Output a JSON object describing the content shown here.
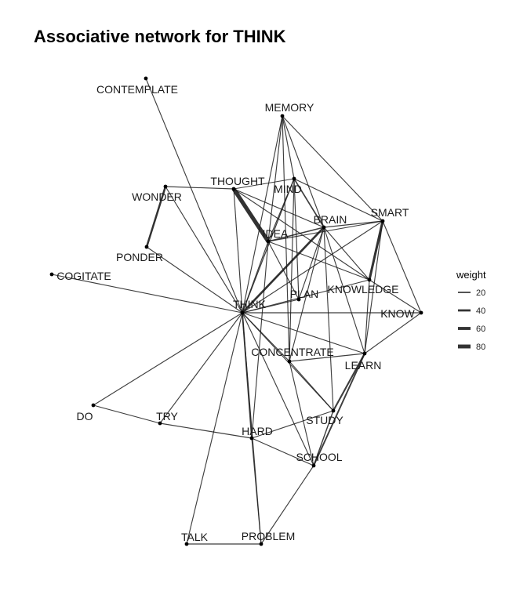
{
  "title": "Associative network for THINK",
  "legend": {
    "title": "weight",
    "items": [
      {
        "label": "20",
        "weight": 20
      },
      {
        "label": "40",
        "weight": 40
      },
      {
        "label": "60",
        "weight": 60
      },
      {
        "label": "80",
        "weight": 80
      }
    ]
  },
  "nodes": [
    {
      "id": "THINK",
      "label": "THINK"
    },
    {
      "id": "CONTEMPLATE",
      "label": "CONTEMPLATE"
    },
    {
      "id": "MEMORY",
      "label": "MEMORY"
    },
    {
      "id": "THOUGHT",
      "label": "THOUGHT"
    },
    {
      "id": "MIND",
      "label": "MIND"
    },
    {
      "id": "WONDER",
      "label": "WONDER"
    },
    {
      "id": "BRAIN",
      "label": "BRAIN"
    },
    {
      "id": "SMART",
      "label": "SMART"
    },
    {
      "id": "IDEA",
      "label": "IDEA"
    },
    {
      "id": "PONDER",
      "label": "PONDER"
    },
    {
      "id": "COGITATE",
      "label": "COGITATE"
    },
    {
      "id": "PLAN",
      "label": "PLAN"
    },
    {
      "id": "KNOWLEDGE",
      "label": "KNOWLEDGE"
    },
    {
      "id": "KNOW",
      "label": "KNOW"
    },
    {
      "id": "CONCENTRATE",
      "label": "CONCENTRATE"
    },
    {
      "id": "LEARN",
      "label": "LEARN"
    },
    {
      "id": "DO",
      "label": "DO"
    },
    {
      "id": "TRY",
      "label": "TRY"
    },
    {
      "id": "STUDY",
      "label": "STUDY"
    },
    {
      "id": "HARD",
      "label": "HARD"
    },
    {
      "id": "SCHOOL",
      "label": "SCHOOL"
    },
    {
      "id": "TALK",
      "label": "TALK"
    },
    {
      "id": "PROBLEM",
      "label": "PROBLEM"
    }
  ],
  "edges": [
    {
      "s": "THINK",
      "t": "CONTEMPLATE",
      "w": 10
    },
    {
      "s": "THINK",
      "t": "MEMORY",
      "w": 10
    },
    {
      "s": "THINK",
      "t": "THOUGHT",
      "w": 10
    },
    {
      "s": "THINK",
      "t": "MIND",
      "w": 12
    },
    {
      "s": "THINK",
      "t": "WONDER",
      "w": 10
    },
    {
      "s": "THINK",
      "t": "BRAIN",
      "w": 38
    },
    {
      "s": "THINK",
      "t": "SMART",
      "w": 10
    },
    {
      "s": "THINK",
      "t": "IDEA",
      "w": 10
    },
    {
      "s": "THINK",
      "t": "COGITATE",
      "w": 10
    },
    {
      "s": "THINK",
      "t": "PLAN",
      "w": 10
    },
    {
      "s": "THINK",
      "t": "KNOWLEDGE",
      "w": 10
    },
    {
      "s": "THINK",
      "t": "KNOW",
      "w": 10
    },
    {
      "s": "THINK",
      "t": "CONCENTRATE",
      "w": 10
    },
    {
      "s": "THINK",
      "t": "LEARN",
      "w": 10
    },
    {
      "s": "THINK",
      "t": "DO",
      "w": 10
    },
    {
      "s": "THINK",
      "t": "TRY",
      "w": 10
    },
    {
      "s": "THINK",
      "t": "STUDY",
      "w": 10
    },
    {
      "s": "THINK",
      "t": "HARD",
      "w": 22
    },
    {
      "s": "THINK",
      "t": "SCHOOL",
      "w": 10
    },
    {
      "s": "THINK",
      "t": "TALK",
      "w": 10
    },
    {
      "s": "THINK",
      "t": "PROBLEM",
      "w": 10
    },
    {
      "s": "THINK",
      "t": "PONDER",
      "w": 10
    },
    {
      "s": "THOUGHT",
      "t": "IDEA",
      "w": 85
    },
    {
      "s": "THOUGHT",
      "t": "WONDER",
      "w": 10
    },
    {
      "s": "THOUGHT",
      "t": "MIND",
      "w": 10
    },
    {
      "s": "THOUGHT",
      "t": "BRAIN",
      "w": 10
    },
    {
      "s": "THOUGHT",
      "t": "KNOWLEDGE",
      "w": 10
    },
    {
      "s": "WONDER",
      "t": "PONDER",
      "w": 35
    },
    {
      "s": "MEMORY",
      "t": "MIND",
      "w": 10
    },
    {
      "s": "MEMORY",
      "t": "BRAIN",
      "w": 10
    },
    {
      "s": "MEMORY",
      "t": "IDEA",
      "w": 10
    },
    {
      "s": "MEMORY",
      "t": "SMART",
      "w": 10
    },
    {
      "s": "MEMORY",
      "t": "CONCENTRATE",
      "w": 10
    },
    {
      "s": "MIND",
      "t": "BRAIN",
      "w": 20
    },
    {
      "s": "MIND",
      "t": "IDEA",
      "w": 10
    },
    {
      "s": "MIND",
      "t": "SMART",
      "w": 10
    },
    {
      "s": "MIND",
      "t": "CONCENTRATE",
      "w": 10
    },
    {
      "s": "MIND",
      "t": "PLAN",
      "w": 10
    },
    {
      "s": "BRAIN",
      "t": "SMART",
      "w": 10
    },
    {
      "s": "BRAIN",
      "t": "IDEA",
      "w": 18
    },
    {
      "s": "BRAIN",
      "t": "KNOWLEDGE",
      "w": 10
    },
    {
      "s": "BRAIN",
      "t": "LEARN",
      "w": 10
    },
    {
      "s": "BRAIN",
      "t": "STUDY",
      "w": 10
    },
    {
      "s": "BRAIN",
      "t": "PLAN",
      "w": 10
    },
    {
      "s": "BRAIN",
      "t": "CONCENTRATE",
      "w": 10
    },
    {
      "s": "SMART",
      "t": "KNOWLEDGE",
      "w": 45
    },
    {
      "s": "SMART",
      "t": "KNOW",
      "w": 10
    },
    {
      "s": "SMART",
      "t": "LEARN",
      "w": 10
    },
    {
      "s": "SMART",
      "t": "IDEA",
      "w": 10
    },
    {
      "s": "IDEA",
      "t": "KNOWLEDGE",
      "w": 10
    },
    {
      "s": "IDEA",
      "t": "PLAN",
      "w": 10
    },
    {
      "s": "IDEA",
      "t": "HARD",
      "w": 10
    },
    {
      "s": "KNOWLEDGE",
      "t": "KNOW",
      "w": 10
    },
    {
      "s": "KNOWLEDGE",
      "t": "LEARN",
      "w": 10
    },
    {
      "s": "KNOW",
      "t": "LEARN",
      "w": 10
    },
    {
      "s": "CONCENTRATE",
      "t": "LEARN",
      "w": 10
    },
    {
      "s": "CONCENTRATE",
      "t": "STUDY",
      "w": 10
    },
    {
      "s": "CONCENTRATE",
      "t": "SCHOOL",
      "w": 10
    },
    {
      "s": "LEARN",
      "t": "STUDY",
      "w": 28
    },
    {
      "s": "LEARN",
      "t": "SCHOOL",
      "w": 25
    },
    {
      "s": "STUDY",
      "t": "SCHOOL",
      "w": 15
    },
    {
      "s": "STUDY",
      "t": "HARD",
      "w": 10
    },
    {
      "s": "DO",
      "t": "TRY",
      "w": 10
    },
    {
      "s": "TRY",
      "t": "HARD",
      "w": 10
    },
    {
      "s": "HARD",
      "t": "SCHOOL",
      "w": 10
    },
    {
      "s": "HARD",
      "t": "PROBLEM",
      "w": 10
    },
    {
      "s": "TALK",
      "t": "PROBLEM",
      "w": 10
    },
    {
      "s": "PROBLEM",
      "t": "SCHOOL",
      "w": 10
    }
  ]
}
